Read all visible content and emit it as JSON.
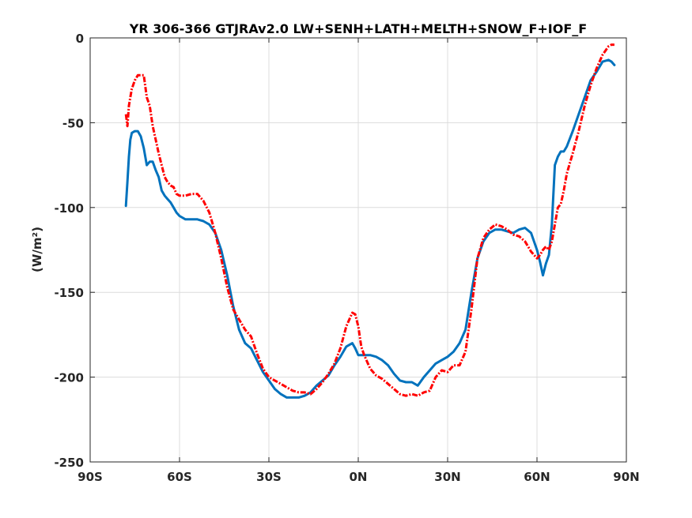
{
  "chart_data": {
    "type": "line",
    "title": "YR 306-366 GTJRAv2.0 LW+SENH+LATH+MELTH+SNOW_F+IOF_F",
    "ylabel": "(W/m²)",
    "xlabel": "",
    "xlim": [
      -90,
      90
    ],
    "ylim": [
      -250,
      0
    ],
    "grid": true,
    "xticks": [
      -90,
      -60,
      -30,
      0,
      30,
      60,
      90
    ],
    "xtick_labels": [
      "90S",
      "60S",
      "30S",
      "0N",
      "30N",
      "60N",
      "90N"
    ],
    "yticks": [
      0,
      -50,
      -100,
      -150,
      -200,
      -250
    ],
    "ytick_labels": [
      "0",
      "-50",
      "-100",
      "-150",
      "-200",
      "-250"
    ],
    "series": [
      {
        "color": "#0072BD",
        "style": "solid",
        "x": [
          -78,
          -77.5,
          -77,
          -76.5,
          -76,
          -75,
          -74,
          -73,
          -72,
          -71,
          -70,
          -69,
          -68,
          -67,
          -66,
          -65,
          -64,
          -63,
          -62,
          -61,
          -60,
          -58,
          -56,
          -54,
          -52,
          -50,
          -48,
          -46,
          -44,
          -42,
          -40,
          -38,
          -36,
          -34,
          -32,
          -30,
          -28,
          -26,
          -24,
          -22,
          -20,
          -18,
          -16,
          -14,
          -12,
          -10,
          -8,
          -6,
          -4,
          -2,
          -1,
          0,
          1,
          2,
          4,
          6,
          8,
          10,
          12,
          14,
          16,
          18,
          20,
          22,
          24,
          26,
          28,
          30,
          32,
          34,
          36,
          38,
          40,
          42,
          44,
          46,
          48,
          50,
          52,
          54,
          56,
          58,
          60,
          61,
          62,
          63,
          64,
          65,
          66,
          67,
          68,
          69,
          70,
          72,
          74,
          76,
          78,
          80,
          82,
          84,
          85,
          86
        ],
        "y": [
          -99,
          -85,
          -70,
          -60,
          -56,
          -55,
          -55,
          -58,
          -65,
          -75,
          -73,
          -73,
          -78,
          -82,
          -90,
          -93,
          -95,
          -97,
          -100,
          -103,
          -105,
          -107,
          -107,
          -107,
          -108,
          -110,
          -115,
          -125,
          -140,
          -158,
          -172,
          -180,
          -183,
          -190,
          -197,
          -202,
          -207,
          -210,
          -212,
          -212,
          -212,
          -211,
          -209,
          -205,
          -202,
          -199,
          -193,
          -188,
          -182,
          -180,
          -183,
          -187,
          -187,
          -187,
          -187,
          -188,
          -190,
          -193,
          -198,
          -202,
          -203,
          -203,
          -205,
          -200,
          -196,
          -192,
          -190,
          -188,
          -185,
          -180,
          -172,
          -150,
          -130,
          -120,
          -115,
          -113,
          -113,
          -114,
          -115,
          -113,
          -112,
          -115,
          -125,
          -132,
          -140,
          -133,
          -128,
          -110,
          -75,
          -70,
          -67,
          -67,
          -64,
          -55,
          -45,
          -35,
          -25,
          -20,
          -14,
          -13,
          -14,
          -16
        ]
      },
      {
        "color": "#FF0000",
        "style": "dashdot",
        "x": [
          -78,
          -77.5,
          -77,
          -76.5,
          -76,
          -75,
          -74,
          -73,
          -72,
          -71,
          -70,
          -69,
          -68,
          -67,
          -66,
          -65,
          -64,
          -63,
          -62,
          -61,
          -60,
          -58,
          -56,
          -54,
          -52,
          -50,
          -48,
          -46,
          -44,
          -42,
          -40,
          -38,
          -36,
          -34,
          -32,
          -30,
          -28,
          -26,
          -24,
          -22,
          -20,
          -18,
          -16,
          -14,
          -12,
          -10,
          -8,
          -6,
          -4,
          -2,
          -1,
          0,
          1,
          2,
          4,
          6,
          8,
          10,
          12,
          14,
          16,
          18,
          20,
          22,
          24,
          26,
          28,
          30,
          32,
          34,
          36,
          38,
          40,
          42,
          44,
          46,
          48,
          50,
          52,
          54,
          56,
          58,
          60,
          61,
          62,
          63,
          64,
          65,
          66,
          67,
          68,
          69,
          70,
          72,
          74,
          76,
          78,
          80,
          82,
          84,
          85,
          86
        ],
        "y": [
          -45,
          -52,
          -40,
          -35,
          -30,
          -25,
          -22,
          -22,
          -22,
          -35,
          -40,
          -52,
          -60,
          -68,
          -75,
          -82,
          -85,
          -87,
          -88,
          -92,
          -93,
          -93,
          -92,
          -92,
          -96,
          -103,
          -115,
          -130,
          -147,
          -160,
          -166,
          -172,
          -176,
          -186,
          -195,
          -200,
          -202,
          -204,
          -206,
          -208,
          -209,
          -209,
          -210,
          -207,
          -203,
          -198,
          -192,
          -183,
          -170,
          -162,
          -163,
          -170,
          -182,
          -187,
          -195,
          -199,
          -201,
          -204,
          -207,
          -210,
          -211,
          -210,
          -211,
          -209,
          -208,
          -200,
          -196,
          -197,
          -193,
          -193,
          -185,
          -160,
          -130,
          -118,
          -113,
          -110,
          -111,
          -113,
          -116,
          -117,
          -120,
          -126,
          -130,
          -128,
          -125,
          -123,
          -125,
          -120,
          -110,
          -100,
          -98,
          -90,
          -80,
          -68,
          -55,
          -40,
          -28,
          -18,
          -10,
          -5,
          -4,
          -4
        ]
      }
    ]
  }
}
